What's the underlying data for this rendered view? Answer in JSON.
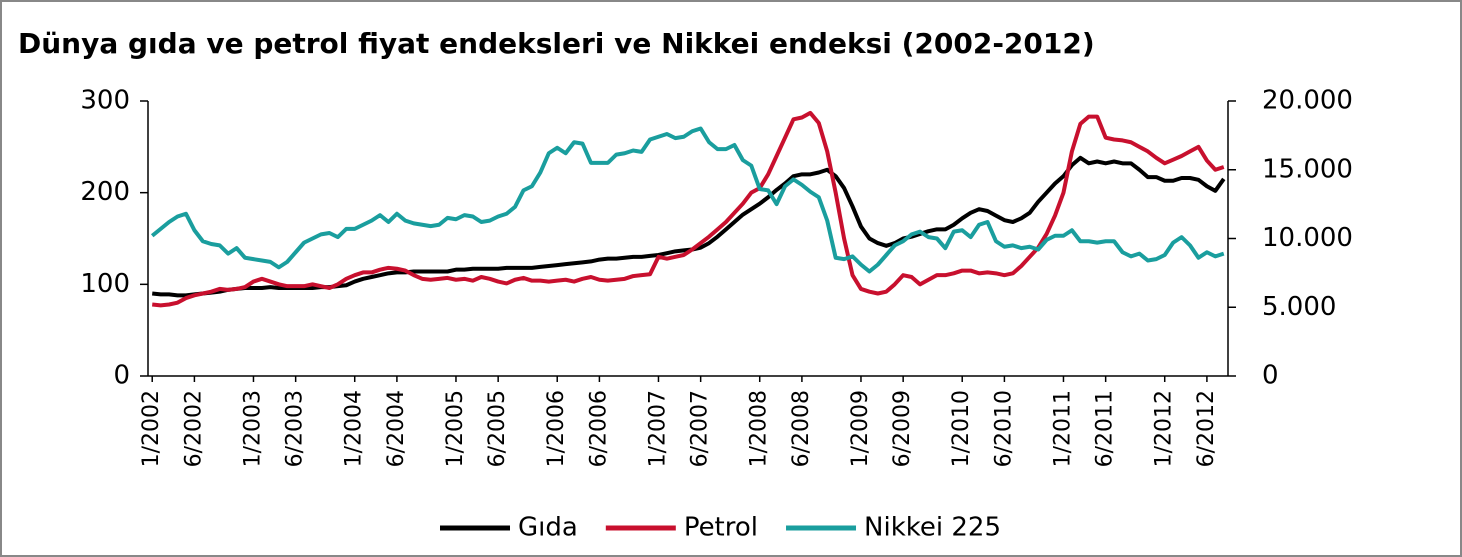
{
  "chart_data": {
    "type": "line",
    "title": "Dünya gıda ve petrol fiyat endeksleri ve Nikkei endeksi (2002-2012)",
    "categories": [
      "1/2002",
      null,
      null,
      null,
      null,
      "6/2002",
      null,
      null,
      null,
      null,
      null,
      null,
      "1/2003",
      null,
      null,
      null,
      null,
      "6/2003",
      null,
      null,
      null,
      null,
      null,
      null,
      "1/2004",
      null,
      null,
      null,
      null,
      "6/2004",
      null,
      null,
      null,
      null,
      null,
      null,
      "1/2005",
      null,
      null,
      null,
      null,
      "6/2005",
      null,
      null,
      null,
      null,
      null,
      null,
      "1/2006",
      null,
      null,
      null,
      null,
      "6/2006",
      null,
      null,
      null,
      null,
      null,
      null,
      "1/2007",
      null,
      null,
      null,
      null,
      "6/2007",
      null,
      null,
      null,
      null,
      null,
      null,
      "1/2008",
      null,
      null,
      null,
      null,
      "6/2008",
      null,
      null,
      null,
      null,
      null,
      null,
      "1/2009",
      null,
      null,
      null,
      null,
      "6/2009",
      null,
      null,
      null,
      null,
      null,
      null,
      "1/2010",
      null,
      null,
      null,
      null,
      "6/2010",
      null,
      null,
      null,
      null,
      null,
      null,
      "1/2011",
      null,
      null,
      null,
      null,
      "6/2011",
      null,
      null,
      null,
      null,
      null,
      null,
      "1/2012",
      null,
      null,
      null,
      null,
      "6/2012",
      null,
      null
    ],
    "series": [
      {
        "name": "Gıda",
        "color": "#000000",
        "values": [
          90,
          89,
          89,
          88,
          88,
          89,
          90,
          91,
          92,
          94,
          95,
          96,
          96,
          96,
          97,
          96,
          96,
          96,
          96,
          96,
          97,
          97,
          98,
          99,
          103,
          106,
          108,
          110,
          112,
          113,
          113,
          114,
          114,
          114,
          114,
          114,
          116,
          116,
          117,
          117,
          117,
          117,
          118,
          118,
          118,
          118,
          119,
          120,
          121,
          122,
          123,
          124,
          125,
          127,
          128,
          128,
          129,
          130,
          130,
          131,
          132,
          134,
          136,
          137,
          138,
          140,
          145,
          152,
          160,
          168,
          176,
          182,
          188,
          195,
          203,
          210,
          218,
          220,
          220,
          222,
          225,
          218,
          205,
          185,
          163,
          150,
          145,
          142,
          145,
          150,
          152,
          155,
          158,
          160,
          160,
          165,
          172,
          178,
          182,
          180,
          175,
          170,
          168,
          172,
          178,
          190,
          200,
          210,
          218,
          230,
          238,
          232,
          234,
          232,
          234,
          232,
          232,
          225,
          217,
          217,
          213,
          213,
          216,
          216,
          214,
          207,
          202,
          215
        ]
      },
      {
        "name": "Petrol",
        "color": "#c8102e",
        "values": [
          78,
          77,
          78,
          80,
          85,
          88,
          90,
          92,
          95,
          94,
          95,
          97,
          103,
          106,
          103,
          100,
          98,
          98,
          98,
          100,
          98,
          96,
          100,
          106,
          110,
          113,
          113,
          116,
          118,
          117,
          115,
          110,
          106,
          105,
          106,
          107,
          105,
          106,
          104,
          108,
          106,
          103,
          101,
          105,
          107,
          104,
          104,
          103,
          104,
          105,
          103,
          106,
          108,
          105,
          104,
          105,
          106,
          109,
          110,
          111,
          130,
          128,
          130,
          132,
          138,
          145,
          152,
          160,
          168,
          178,
          188,
          200,
          205,
          220,
          240,
          260,
          280,
          282,
          287,
          276,
          245,
          200,
          150,
          110,
          95,
          92,
          90,
          92,
          100,
          110,
          108,
          100,
          105,
          110,
          110,
          112,
          115,
          115,
          112,
          113,
          112,
          110,
          112,
          120,
          130,
          140,
          155,
          175,
          200,
          245,
          275,
          283,
          283,
          260,
          258,
          257,
          255,
          250,
          245,
          238,
          232,
          236,
          240,
          245,
          250,
          235,
          225,
          228
        ]
      },
      {
        "name": "Nikkei 225",
        "color": "#1a9e9e",
        "axis": "y2",
        "values": [
          10200,
          10700,
          11200,
          11600,
          11800,
          10600,
          9800,
          9600,
          9500,
          8900,
          9300,
          8600,
          8500,
          8400,
          8300,
          7900,
          8300,
          9000,
          9700,
          10000,
          10300,
          10400,
          10100,
          10700,
          10700,
          11000,
          11300,
          11700,
          11200,
          11800,
          11300,
          11100,
          11000,
          10900,
          11000,
          11500,
          11400,
          11700,
          11600,
          11200,
          11300,
          11600,
          11800,
          12300,
          13500,
          13800,
          14800,
          16200,
          16600,
          16200,
          17000,
          16900,
          15500,
          15500,
          15500,
          16100,
          16200,
          16400,
          16300,
          17200,
          17400,
          17600,
          17300,
          17400,
          17800,
          18000,
          17000,
          16500,
          16500,
          16800,
          15700,
          15300,
          13600,
          13500,
          12500,
          13800,
          14300,
          13900,
          13400,
          13000,
          11300,
          8600,
          8500,
          8700,
          8100,
          7600,
          8100,
          8800,
          9500,
          9800,
          10300,
          10500,
          10100,
          10000,
          9300,
          10500,
          10600,
          10100,
          11000,
          11200,
          9800,
          9400,
          9500,
          9300,
          9400,
          9200,
          9900,
          10200,
          10200,
          10600,
          9800,
          9800,
          9700,
          9800,
          9800,
          9000,
          8700,
          8900,
          8400,
          8500,
          8800,
          9700,
          10100,
          9500,
          8600,
          9000,
          8700,
          8900
        ]
      }
    ],
    "ylim": [
      0,
      300
    ],
    "yticks": [
      0,
      100,
      200,
      300
    ],
    "y2lim": [
      0,
      20000
    ],
    "y2ticks": [
      0,
      {
        "value": 5000,
        "label": "5.000"
      },
      {
        "value": 10000,
        "label": "10.000"
      },
      {
        "value": 15000,
        "label": "15.000"
      },
      {
        "value": 20000,
        "label": "20.000"
      }
    ],
    "legend": "bottom"
  }
}
